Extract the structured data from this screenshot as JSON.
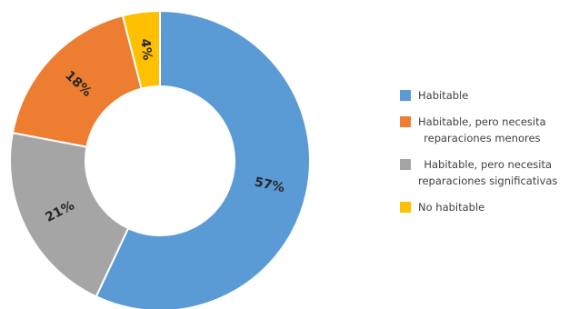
{
  "chart_data": {
    "type": "pie",
    "donut": true,
    "title": "",
    "categories": [
      "Habitable",
      "Habitable, pero necesita reparaciones menores",
      "Habitable, pero necesita reparaciones significativas",
      "No habitable"
    ],
    "values": [
      57,
      18,
      21,
      4
    ],
    "labels": [
      "57%",
      "18%",
      "21%",
      "4%"
    ],
    "colors": [
      "#5b9bd5",
      "#ed7d31",
      "#a5a5a5",
      "#ffc000"
    ],
    "slice_order": [
      0,
      2,
      1,
      3
    ],
    "legend_position": "right",
    "legend": [
      {
        "lines": [
          "Habitable"
        ],
        "color": "#5b9bd5"
      },
      {
        "lines": [
          "Habitable, pero necesita",
          "reparaciones menores"
        ],
        "color": "#ed7d31"
      },
      {
        "lines": [
          "Habitable, pero necesita",
          "reparaciones significativas"
        ],
        "color": "#a5a5a5"
      },
      {
        "lines": [
          "No habitable"
        ],
        "color": "#ffc000"
      }
    ]
  }
}
